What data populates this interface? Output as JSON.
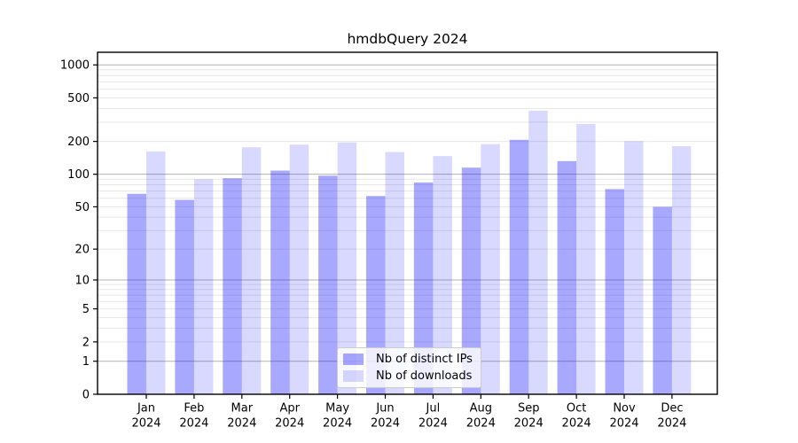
{
  "figure_title": "hmdbQuery 2024",
  "chart_data": {
    "type": "bar",
    "title": "hmdbQuery 2024",
    "categories": [
      "Jan",
      "Feb",
      "Mar",
      "Apr",
      "May",
      "Jun",
      "Jul",
      "Aug",
      "Sep",
      "Oct",
      "Nov",
      "Dec"
    ],
    "category_year": "2024",
    "series": [
      {
        "name": "Nb of distinct IPs",
        "color": "rgba(0,0,255,0.34)",
        "color_on_white_hex": "#a8a8ff",
        "values": [
          66,
          58,
          92,
          108,
          97,
          63,
          84,
          115,
          207,
          132,
          73,
          50
        ]
      },
      {
        "name": "Nb of downloads",
        "color": "rgba(0,0,255,0.15)",
        "color_on_white_hex": "#d8d8ff",
        "values": [
          162,
          90,
          177,
          187,
          196,
          160,
          147,
          189,
          382,
          289,
          201,
          181
        ]
      }
    ],
    "xlabel": "",
    "ylabel": "",
    "yscale": "log1p",
    "ylim": [
      0,
      1300
    ],
    "yticks": [
      0,
      1,
      2,
      5,
      10,
      20,
      50,
      100,
      200,
      500,
      1000
    ],
    "grid": {
      "on": true,
      "major_lines": [
        1,
        10,
        100,
        1000
      ],
      "minor_multipliers": [
        2,
        3,
        4,
        5,
        6,
        7,
        8,
        9
      ],
      "minor_decades": [
        1,
        10,
        100
      ],
      "major_color": "#b3b3b3",
      "minor_color": "#e7e7e7"
    },
    "legend": {
      "position": "lower center"
    },
    "spine_color": "#000000",
    "background_color": "#ffffff"
  }
}
